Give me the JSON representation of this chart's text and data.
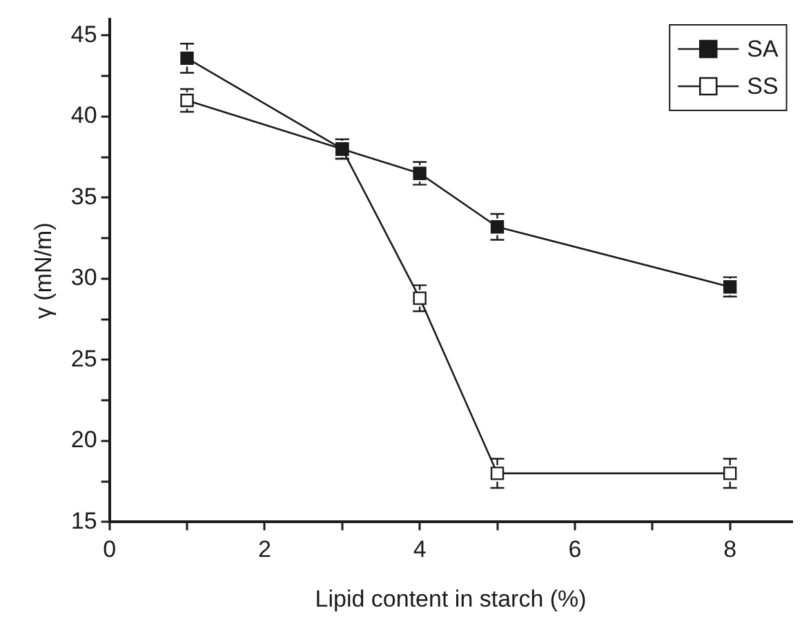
{
  "chart_data": {
    "type": "line",
    "xlabel": "Lipid content in starch (%)",
    "ylabel": "γ (mN/m)",
    "xlim": [
      0,
      8.8
    ],
    "xticks": [
      0,
      {
        "value": 1,
        "label": null
      },
      2,
      {
        "value": 3,
        "label": null
      },
      4,
      {
        "value": 5,
        "label": null
      },
      6,
      {
        "value": 7,
        "label": null
      },
      8
    ],
    "ylim": [
      15,
      46
    ],
    "yticks": [
      15,
      {
        "value": 17.5,
        "label": null
      },
      20,
      {
        "value": 22.5,
        "label": null
      },
      25,
      {
        "value": 27.5,
        "label": null
      },
      30,
      {
        "value": 32.5,
        "label": null
      },
      35,
      {
        "value": 37.5,
        "label": null
      },
      40,
      {
        "value": 42.5,
        "label": null
      },
      45
    ],
    "x": [
      1,
      3,
      4,
      5,
      8
    ],
    "series": [
      {
        "name": "SA",
        "color": "#1a1a1a",
        "values": [
          43.6,
          38,
          36.5,
          33.2,
          29.5
        ],
        "errors": [
          0.9,
          0.6,
          0.7,
          0.8,
          0.6
        ],
        "marker": "square"
      },
      {
        "name": "SS",
        "color": "#1a1a1a",
        "values": [
          41,
          38,
          28.8,
          18,
          18
        ],
        "errors": [
          0.7,
          0.6,
          0.8,
          0.9,
          0.9
        ],
        "marker": "square"
      }
    ],
    "legend": "top right",
    "grid": false,
    "line_style": "solid"
  }
}
